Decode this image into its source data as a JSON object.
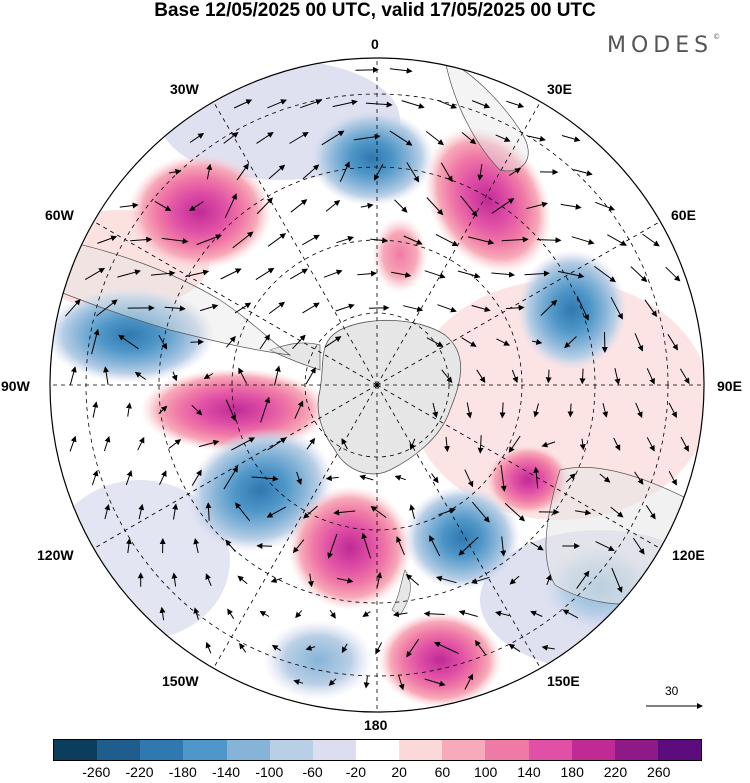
{
  "title": "Base 12/05/2025 00 UTC, valid 17/05/2025 00 UTC",
  "logo_text": "MODES",
  "logo_mark": "©",
  "longitude_labels": {
    "n0": "0",
    "n30e": "30E",
    "n60e": "60E",
    "n90e": "90E",
    "n120e": "120E",
    "n150e": "150E",
    "n180": "180",
    "n150w": "150W",
    "n120w": "120W",
    "n90w": "90W",
    "n60w": "60W",
    "n30w": "30W"
  },
  "reference_vector": {
    "label": "30"
  },
  "colorbar": {
    "ticks": [
      "-260",
      "-220",
      "-180",
      "-140",
      "-100",
      "-60",
      "-20",
      "20",
      "60",
      "100",
      "140",
      "180",
      "220",
      "260"
    ],
    "colors": [
      "#0b3d5c",
      "#1f5e8c",
      "#2f78b0",
      "#4f97c8",
      "#86b4d8",
      "#b9cfe6",
      "#dcdeef",
      "#ffffff",
      "#fbd9d9",
      "#f7aab9",
      "#f07aa6",
      "#e050a6",
      "#c02a95",
      "#8e1a87",
      "#5c0c7c"
    ]
  },
  "anomaly_centers": [
    {
      "sign": "neg",
      "strength": 3
    },
    {
      "sign": "pos",
      "strength": 3
    },
    {
      "sign": "neg",
      "strength": 3
    },
    {
      "sign": "pos",
      "strength": 3
    },
    {
      "sign": "neg",
      "strength": 2
    },
    {
      "sign": "pos",
      "strength": 4
    },
    {
      "sign": "neg",
      "strength": 3
    },
    {
      "sign": "pos",
      "strength": 3
    },
    {
      "sign": "neg",
      "strength": 2
    },
    {
      "sign": "pos",
      "strength": 2
    },
    {
      "sign": "neg",
      "strength": 1
    },
    {
      "sign": "pos",
      "strength": 2
    },
    {
      "sign": "pos",
      "strength": 1
    },
    {
      "sign": "neg",
      "strength": 1
    }
  ]
}
